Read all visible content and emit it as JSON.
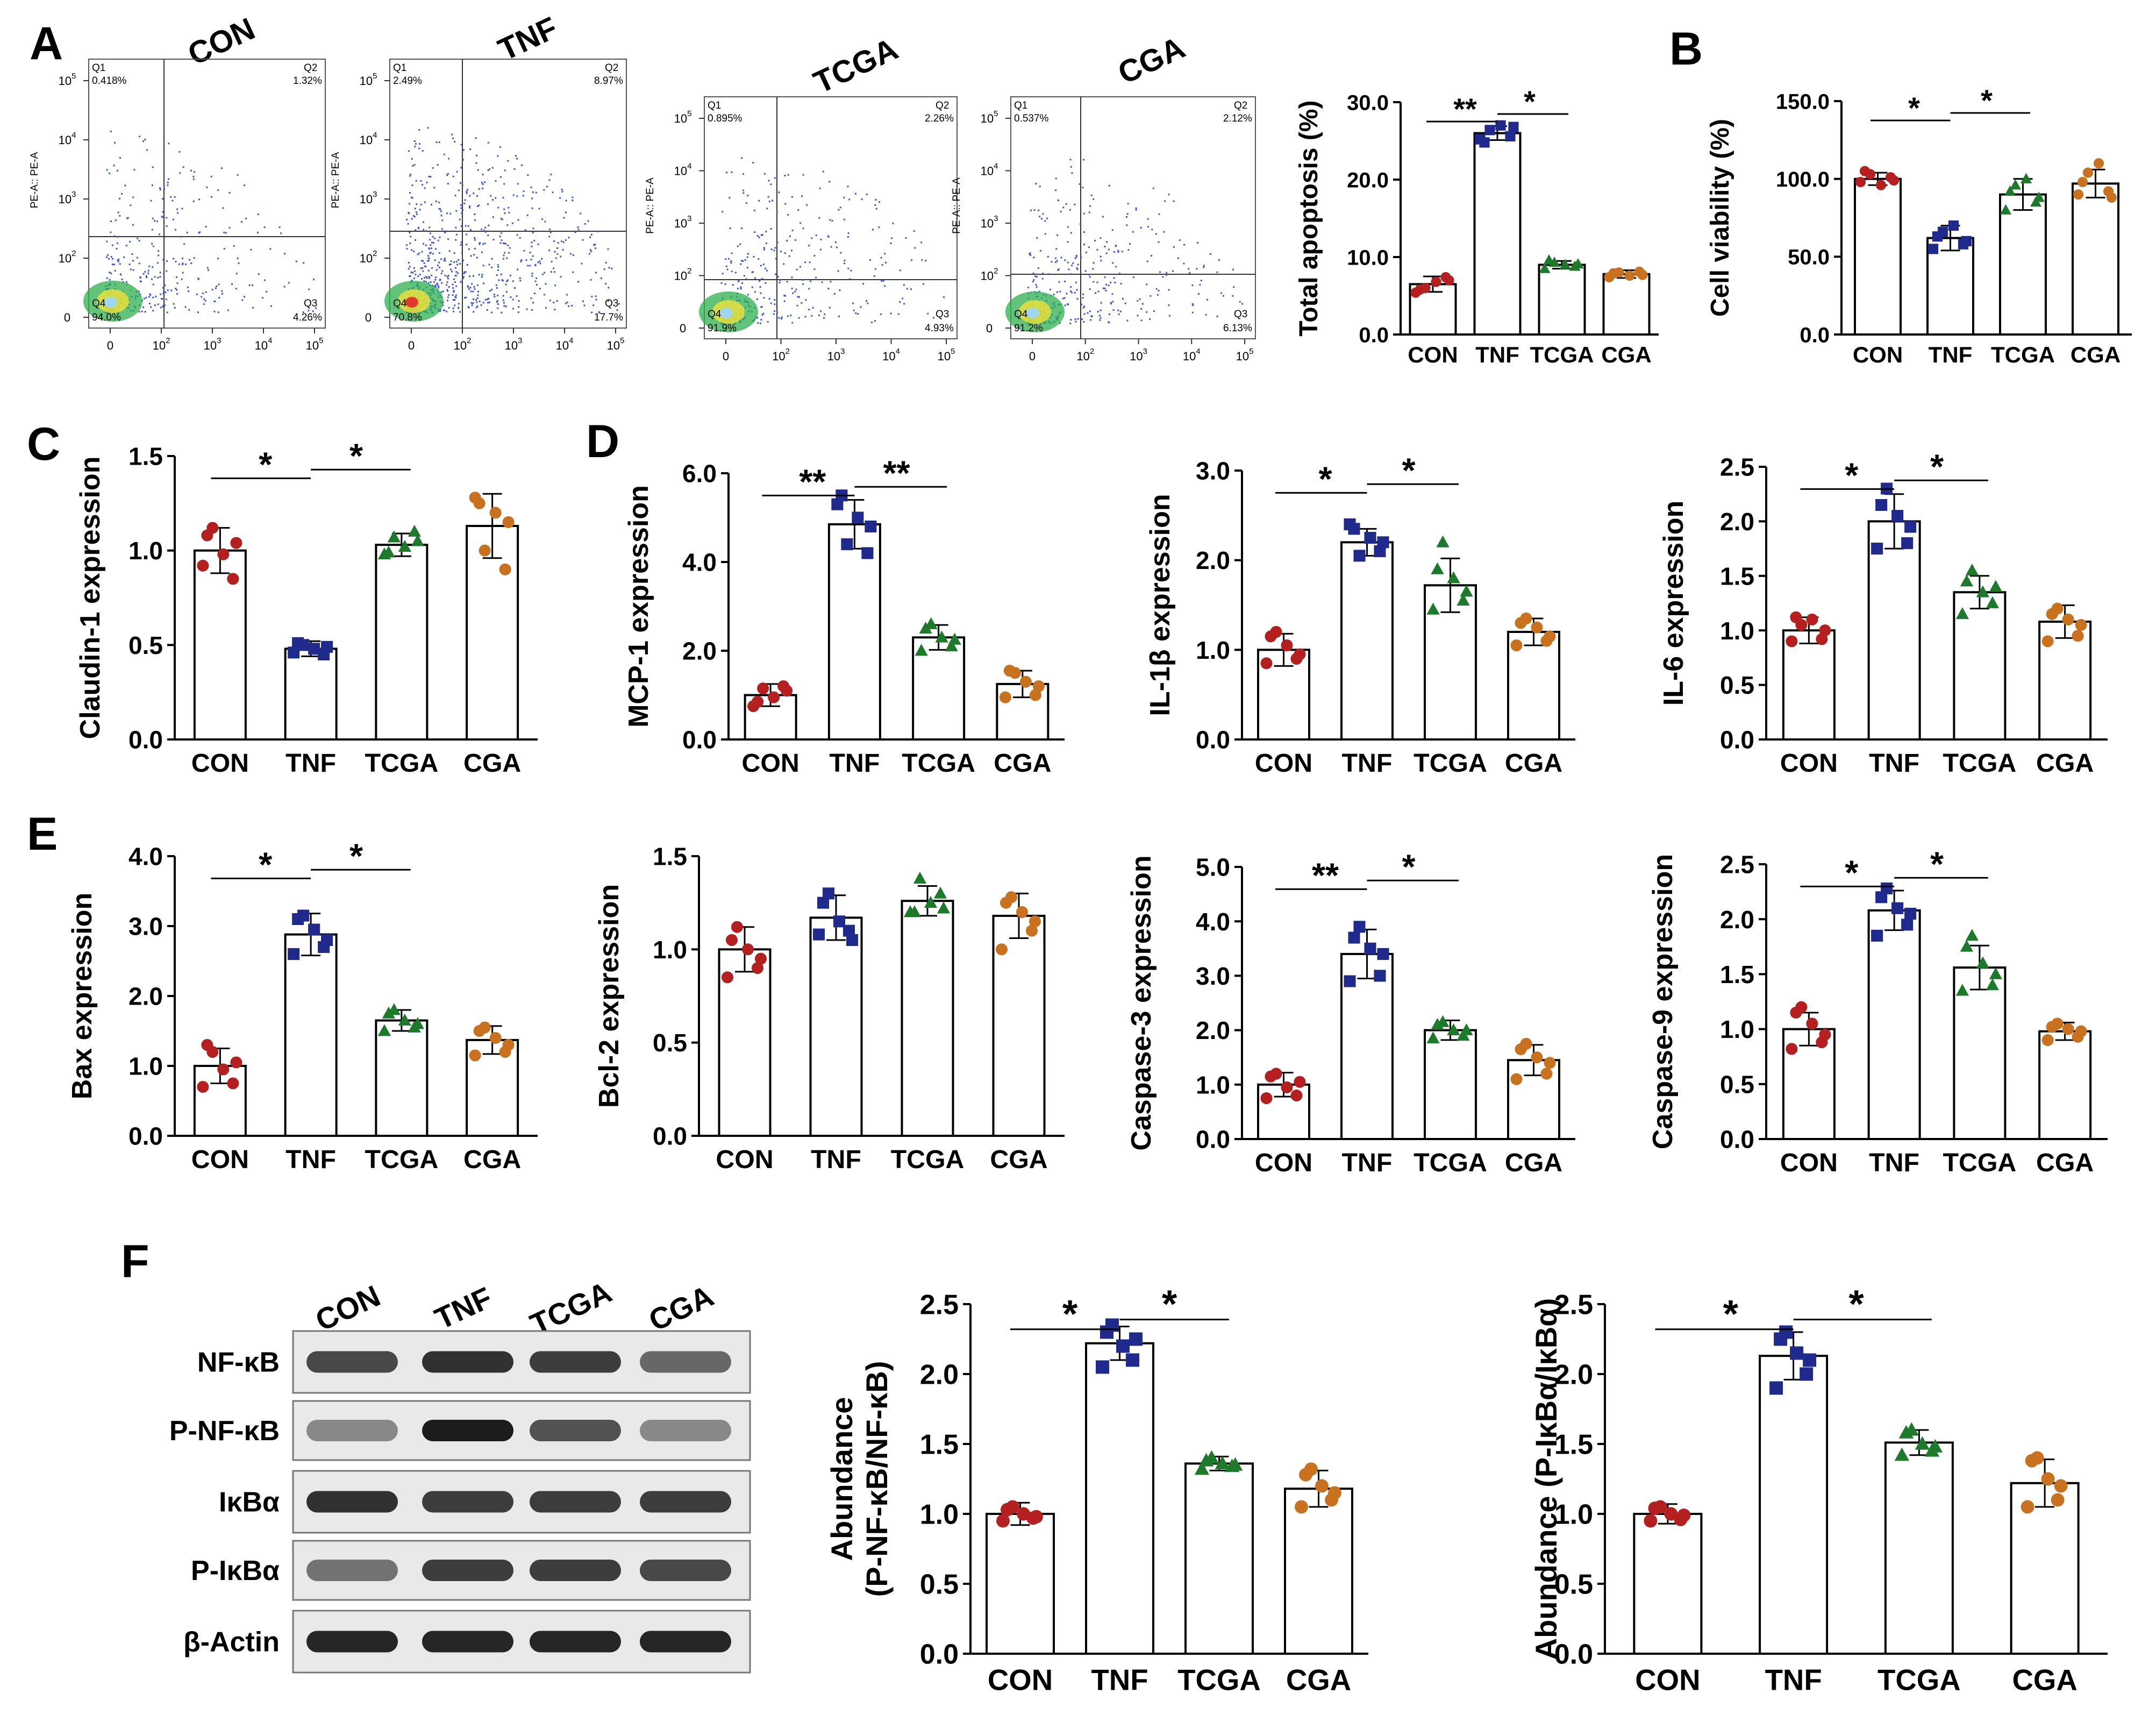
{
  "panel_letters": {
    "A": "A",
    "B": "B",
    "C": "C",
    "D": "D",
    "E": "E",
    "F": "F"
  },
  "group_colors": {
    "CON": "#b41f1f",
    "TNF": "#1f2a8c",
    "TCGA": "#1c7a2a",
    "CGA": "#c8721f"
  },
  "flow_panels": [
    {
      "title": "CON",
      "y_axis": "PE-A:: PE-A",
      "q1": "0.418%",
      "q2": "1.32%",
      "q3": "4.26%",
      "q4": "94.0%"
    },
    {
      "title": "TNF",
      "y_axis": "PE-A:: PE-A",
      "q1": "2.49%",
      "q2": "8.97%",
      "q3": "17.7%",
      "q4": "70.8%"
    },
    {
      "title": "TCGA",
      "y_axis": "PE-A:: PE-A",
      "q1": "0.895%",
      "q2": "2.26%",
      "q3": "4.93%",
      "q4": "91.9%"
    },
    {
      "title": "CGA",
      "y_axis": "PE-A:: PE-A",
      "q1": "0.537%",
      "q2": "2.12%",
      "q3": "6.13%",
      "q4": "91.2%"
    }
  ],
  "flow_quadrant_labels": {
    "q1": "Q1",
    "q2": "Q2",
    "q3": "Q3",
    "q4": "Q4"
  },
  "flow_tick_labels": {
    "x": [
      "0",
      "10",
      "10",
      "10",
      "10"
    ],
    "x_exp": [
      "",
      "2",
      "3",
      "4",
      "5"
    ],
    "y": [
      "0",
      "10",
      "10",
      "10",
      "10"
    ],
    "y_exp": [
      "",
      "2",
      "3",
      "4",
      "5"
    ]
  },
  "blot": {
    "lanes": [
      "CON",
      "TNF",
      "TCGA",
      "CGA"
    ],
    "proteins": [
      "NF-κB",
      "P-NF-κB",
      "IκBα",
      "P-IκBα",
      "β-Actin"
    ]
  },
  "chart_data": [
    {
      "id": "apoptosis",
      "type": "bar",
      "categories": [
        "CON",
        "TNF",
        "TCGA",
        "CGA"
      ],
      "values": [
        6.5,
        26.0,
        9.0,
        7.8
      ],
      "errors": [
        1.0,
        0.9,
        0.5,
        0.5
      ],
      "ylabel": "Total apoptosis (%)",
      "ylim": [
        0,
        30
      ],
      "yticks": [
        "0.0",
        "10.0",
        "20.0",
        "30.0"
      ],
      "sig": [
        {
          "from": 0,
          "to": 1,
          "label": "**"
        },
        {
          "from": 1,
          "to": 2,
          "label": "*"
        }
      ],
      "points": [
        [
          5.4,
          6.0,
          6.8,
          7.4,
          5.8,
          7.0
        ],
        [
          25.2,
          26.4,
          27.0,
          25.6,
          24.8,
          26.8
        ],
        [
          8.5,
          9.3,
          9.0,
          8.8,
          9.6,
          9.1
        ],
        [
          7.4,
          8.0,
          7.6,
          8.1,
          7.9,
          7.7
        ]
      ]
    },
    {
      "id": "viability",
      "type": "bar",
      "categories": [
        "CON",
        "TNF",
        "TCGA",
        "CGA"
      ],
      "values": [
        100.0,
        62.0,
        90.0,
        97.0
      ],
      "errors": [
        4.0,
        8.0,
        10.0,
        9.0
      ],
      "ylabel": "Cell viability (%)",
      "ylim": [
        0,
        150
      ],
      "yticks": [
        "0.0",
        "50.0",
        "100.0",
        "150.0"
      ],
      "sig": [
        {
          "from": 0,
          "to": 1,
          "label": "*"
        },
        {
          "from": 1,
          "to": 2,
          "label": "*"
        }
      ],
      "points": [
        [
          98,
          103,
          96,
          101,
          105,
          99
        ],
        [
          55,
          66,
          70,
          58,
          63,
          60
        ],
        [
          80,
          96,
          100,
          85,
          92,
          88
        ],
        [
          90,
          104,
          110,
          92,
          98,
          88
        ]
      ]
    },
    {
      "id": "claudin",
      "type": "bar",
      "categories": [
        "CON",
        "TNF",
        "TCGA",
        "CGA"
      ],
      "values": [
        1.0,
        0.48,
        1.03,
        1.13
      ],
      "errors": [
        0.12,
        0.04,
        0.06,
        0.17
      ],
      "ylabel": "Claudin-1 expression",
      "ylim": [
        0,
        1.5
      ],
      "yticks": [
        "0.0",
        "0.5",
        "1.0",
        "1.5"
      ],
      "sig": [
        {
          "from": 0,
          "to": 1,
          "label": "*"
        },
        {
          "from": 1,
          "to": 2,
          "label": "*"
        }
      ],
      "points": [
        [
          0.92,
          1.12,
          0.98,
          0.85,
          1.08,
          1.04
        ],
        [
          0.46,
          0.5,
          0.48,
          0.45,
          0.51,
          0.49
        ],
        [
          0.98,
          1.07,
          1.02,
          1.1,
          0.99,
          1.05
        ],
        [
          1.28,
          1.0,
          1.2,
          0.9,
          1.25,
          1.15
        ]
      ]
    },
    {
      "id": "mcp1",
      "type": "bar",
      "categories": [
        "CON",
        "TNF",
        "TCGA",
        "CGA"
      ],
      "values": [
        1.0,
        4.85,
        2.3,
        1.25
      ],
      "errors": [
        0.25,
        0.55,
        0.28,
        0.3
      ],
      "ylabel": "MCP-1 expression",
      "ylim": [
        0,
        6
      ],
      "yticks": [
        "0.0",
        "2.0",
        "4.0",
        "6.0"
      ],
      "sig": [
        {
          "from": 0,
          "to": 1,
          "label": "**"
        },
        {
          "from": 1,
          "to": 2,
          "label": "**"
        }
      ],
      "points": [
        [
          0.75,
          1.15,
          0.95,
          1.2,
          0.85,
          1.1
        ],
        [
          5.3,
          4.4,
          5.0,
          4.2,
          5.5,
          4.8
        ],
        [
          2.0,
          2.6,
          2.3,
          2.1,
          2.5,
          2.25
        ],
        [
          0.95,
          1.5,
          1.3,
          1.0,
          1.55,
          1.2
        ]
      ]
    },
    {
      "id": "il1b",
      "type": "bar",
      "categories": [
        "CON",
        "TNF",
        "TCGA",
        "CGA"
      ],
      "values": [
        1.0,
        2.2,
        1.72,
        1.2
      ],
      "errors": [
        0.18,
        0.15,
        0.3,
        0.15
      ],
      "ylabel": "IL-1β expression",
      "ylim": [
        0,
        3
      ],
      "yticks": [
        "0.0",
        "1.0",
        "2.0",
        "3.0"
      ],
      "sig": [
        {
          "from": 0,
          "to": 1,
          "label": "*"
        },
        {
          "from": 1,
          "to": 2,
          "label": "*"
        }
      ],
      "points": [
        [
          0.85,
          1.2,
          1.05,
          0.9,
          1.15,
          0.95
        ],
        [
          2.4,
          2.05,
          2.25,
          2.1,
          2.35,
          2.2
        ],
        [
          1.45,
          2.2,
          1.8,
          1.55,
          1.9,
          1.65
        ],
        [
          1.05,
          1.35,
          1.25,
          1.1,
          1.3,
          1.15
        ]
      ]
    },
    {
      "id": "il6",
      "type": "bar",
      "categories": [
        "CON",
        "TNF",
        "TCGA",
        "CGA"
      ],
      "values": [
        1.0,
        2.0,
        1.35,
        1.08
      ],
      "errors": [
        0.12,
        0.25,
        0.15,
        0.15
      ],
      "ylabel": "IL-6 expression",
      "ylim": [
        0,
        2.5
      ],
      "yticks": [
        "0.0",
        "0.5",
        "1.0",
        "1.5",
        "2.0",
        "2.5"
      ],
      "sig": [
        {
          "from": 0,
          "to": 1,
          "label": "*"
        },
        {
          "from": 1,
          "to": 2,
          "label": "*"
        }
      ],
      "points": [
        [
          0.9,
          1.05,
          1.1,
          0.92,
          1.12,
          1.0
        ],
        [
          1.75,
          2.3,
          2.05,
          1.8,
          2.15,
          1.95
        ],
        [
          1.15,
          1.55,
          1.35,
          1.25,
          1.45,
          1.4
        ],
        [
          0.9,
          1.2,
          1.1,
          0.95,
          1.15,
          1.05
        ]
      ]
    },
    {
      "id": "bax",
      "type": "bar",
      "categories": [
        "CON",
        "TNF",
        "TCGA",
        "CGA"
      ],
      "values": [
        1.0,
        2.88,
        1.65,
        1.37
      ],
      "errors": [
        0.25,
        0.3,
        0.15,
        0.2
      ],
      "ylabel": "Bax expression",
      "ylim": [
        0,
        4
      ],
      "yticks": [
        "0.0",
        "1.0",
        "2.0",
        "3.0",
        "4.0"
      ],
      "sig": [
        {
          "from": 0,
          "to": 1,
          "label": "*"
        },
        {
          "from": 1,
          "to": 2,
          "label": "*"
        }
      ],
      "points": [
        [
          0.7,
          1.2,
          0.95,
          0.75,
          1.3,
          1.05
        ],
        [
          2.6,
          3.15,
          2.95,
          2.7,
          3.1,
          2.8
        ],
        [
          1.5,
          1.8,
          1.65,
          1.55,
          1.75,
          1.6
        ],
        [
          1.15,
          1.55,
          1.4,
          1.2,
          1.5,
          1.3
        ]
      ]
    },
    {
      "id": "bcl2",
      "type": "bar",
      "categories": [
        "CON",
        "TNF",
        "TCGA",
        "CGA"
      ],
      "values": [
        1.0,
        1.17,
        1.26,
        1.18
      ],
      "errors": [
        0.12,
        0.12,
        0.08,
        0.12
      ],
      "ylabel": "Bcl-2 expression",
      "ylim": [
        0,
        1.5
      ],
      "yticks": [
        "0.0",
        "0.5",
        "1.0",
        "1.5"
      ],
      "sig": [],
      "points": [
        [
          0.85,
          1.12,
          1.0,
          0.9,
          1.05,
          0.95
        ],
        [
          1.08,
          1.3,
          1.15,
          1.1,
          1.25,
          1.05
        ],
        [
          1.2,
          1.38,
          1.25,
          1.3,
          1.2,
          1.22
        ],
        [
          1.0,
          1.28,
          1.2,
          1.1,
          1.25,
          1.15
        ]
      ]
    },
    {
      "id": "casp3",
      "type": "bar",
      "categories": [
        "CON",
        "TNF",
        "TCGA",
        "CGA"
      ],
      "values": [
        1.0,
        3.4,
        2.0,
        1.45
      ],
      "errors": [
        0.22,
        0.45,
        0.18,
        0.28
      ],
      "ylabel": "Caspase-3 expression",
      "ylim": [
        0,
        5
      ],
      "yticks": [
        "0.0",
        "1.0",
        "2.0",
        "3.0",
        "4.0",
        "5.0"
      ],
      "sig": [
        {
          "from": 0,
          "to": 1,
          "label": "**"
        },
        {
          "from": 1,
          "to": 2,
          "label": "*"
        }
      ],
      "points": [
        [
          0.75,
          1.2,
          0.95,
          0.8,
          1.15,
          1.05
        ],
        [
          2.9,
          3.9,
          3.5,
          3.0,
          3.7,
          3.4
        ],
        [
          1.85,
          2.15,
          2.0,
          1.9,
          2.1,
          2.0
        ],
        [
          1.1,
          1.75,
          1.5,
          1.2,
          1.65,
          1.4
        ]
      ]
    },
    {
      "id": "casp9",
      "type": "bar",
      "categories": [
        "CON",
        "TNF",
        "TCGA",
        "CGA"
      ],
      "values": [
        1.0,
        2.08,
        1.56,
        0.98
      ],
      "errors": [
        0.15,
        0.18,
        0.2,
        0.08
      ],
      "ylabel": "Caspase-9 expression",
      "ylim": [
        0,
        2.5
      ],
      "yticks": [
        "0.0",
        "0.5",
        "1.0",
        "1.5",
        "2.0",
        "2.5"
      ],
      "sig": [
        {
          "from": 0,
          "to": 1,
          "label": "*"
        },
        {
          "from": 1,
          "to": 2,
          "label": "*"
        }
      ],
      "points": [
        [
          0.82,
          1.2,
          1.05,
          0.88,
          1.15,
          0.95
        ],
        [
          1.85,
          2.28,
          2.1,
          1.95,
          2.2,
          2.05
        ],
        [
          1.35,
          1.85,
          1.6,
          1.4,
          1.75,
          1.5
        ],
        [
          0.9,
          1.05,
          1.0,
          0.93,
          1.02,
          0.98
        ]
      ]
    },
    {
      "id": "pnfkb",
      "type": "bar",
      "categories": [
        "CON",
        "TNF",
        "TCGA",
        "CGA"
      ],
      "values": [
        1.0,
        2.22,
        1.36,
        1.18
      ],
      "errors": [
        0.08,
        0.12,
        0.05,
        0.13
      ],
      "ylabel": "Abundance",
      "ylabel2": "(P-NF-κB/NF-κB)",
      "ylim": [
        0,
        2.5
      ],
      "yticks": [
        "0.0",
        "0.5",
        "1.0",
        "1.5",
        "2.0",
        "2.5"
      ],
      "sig": [
        {
          "from": 0,
          "to": 1,
          "label": "*"
        },
        {
          "from": 1,
          "to": 2,
          "label": "*"
        }
      ],
      "points": [
        [
          0.95,
          1.05,
          1.0,
          0.97,
          1.03,
          0.98
        ],
        [
          2.05,
          2.35,
          2.2,
          2.1,
          2.3,
          2.25
        ],
        [
          1.32,
          1.4,
          1.36,
          1.34,
          1.38,
          1.35
        ],
        [
          1.05,
          1.32,
          1.2,
          1.1,
          1.28,
          1.15
        ]
      ]
    },
    {
      "id": "pikba",
      "type": "bar",
      "categories": [
        "CON",
        "TNF",
        "TCGA",
        "CGA"
      ],
      "values": [
        1.0,
        2.13,
        1.51,
        1.22
      ],
      "errors": [
        0.07,
        0.17,
        0.09,
        0.17
      ],
      "ylabel": "Abundance (P-IκBα/IκBα)",
      "ylim": [
        0,
        2.5
      ],
      "yticks": [
        "0.0",
        "0.5",
        "1.0",
        "1.5",
        "2.0",
        "2.5"
      ],
      "sig": [
        {
          "from": 0,
          "to": 1,
          "label": "*"
        },
        {
          "from": 1,
          "to": 2,
          "label": "*"
        }
      ],
      "points": [
        [
          0.95,
          1.05,
          1.0,
          0.96,
          1.04,
          0.99
        ],
        [
          1.9,
          2.3,
          2.15,
          2.0,
          2.25,
          2.1
        ],
        [
          1.42,
          1.6,
          1.5,
          1.45,
          1.58,
          1.48
        ],
        [
          1.05,
          1.4,
          1.25,
          1.1,
          1.38,
          1.2
        ]
      ]
    }
  ]
}
